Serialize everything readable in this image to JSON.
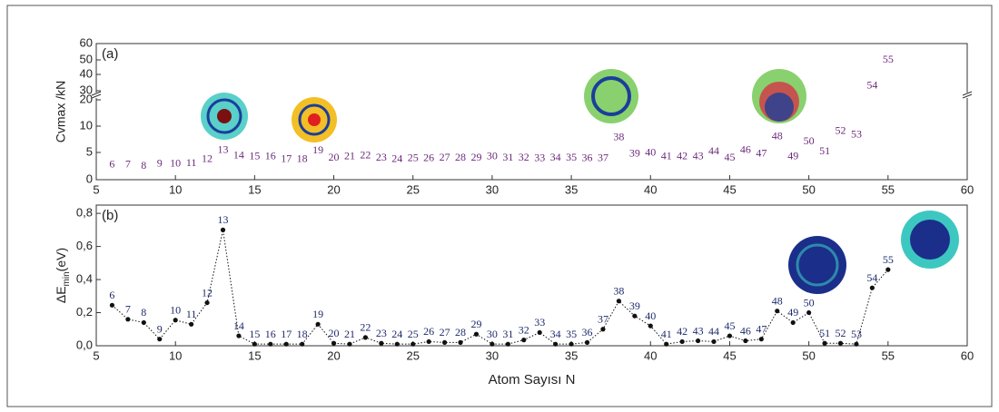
{
  "chart_data": [
    {
      "type": "scatter",
      "panel": "(a)",
      "y_label": "Cvmax /kN",
      "color": "#6b2a7a",
      "x": [
        6,
        7,
        8,
        9,
        10,
        11,
        12,
        13,
        14,
        15,
        16,
        17,
        18,
        19,
        20,
        21,
        22,
        23,
        24,
        25,
        26,
        27,
        28,
        29,
        30,
        31,
        32,
        33,
        34,
        35,
        36,
        37,
        38,
        39,
        40,
        41,
        42,
        43,
        44,
        45,
        46,
        47,
        48,
        49,
        50,
        51,
        52,
        53,
        54,
        55
      ],
      "values": [
        2.7,
        2.7,
        2.5,
        2.9,
        2.9,
        3,
        3.7,
        5.4,
        4.4,
        4.2,
        4.2,
        3.7,
        3.7,
        5.3,
        4,
        4.2,
        4.4,
        4,
        3.7,
        3.9,
        3.9,
        4,
        4,
        4,
        4.2,
        4,
        4,
        3.9,
        4,
        4,
        3.9,
        3.9,
        7.8,
        4.7,
        4.9,
        4.2,
        4.2,
        4.2,
        5.1,
        4,
        5.4,
        4.7,
        8,
        4.2,
        7,
        5.1,
        9,
        8.3,
        33,
        50
      ],
      "xlim": [
        5,
        60
      ],
      "xticks": [
        5,
        10,
        15,
        20,
        25,
        30,
        35,
        40,
        45,
        50,
        55,
        60
      ],
      "ylim": [
        0,
        60
      ],
      "yticks": [
        0,
        5,
        10,
        20,
        30,
        40,
        50,
        60
      ],
      "ybreak": [
        20,
        30
      ]
    },
    {
      "type": "line",
      "panel": "(b)",
      "y_label": [
        "ΔE",
        "min",
        "(eV)"
      ],
      "x_label": "Atom Sayısı N",
      "color": "#111",
      "label_color": "#1c2a6b",
      "x": [
        6,
        7,
        8,
        9,
        10,
        11,
        12,
        13,
        14,
        15,
        16,
        17,
        18,
        19,
        20,
        21,
        22,
        23,
        24,
        25,
        26,
        27,
        28,
        29,
        30,
        31,
        32,
        33,
        34,
        35,
        36,
        37,
        38,
        39,
        40,
        41,
        42,
        43,
        44,
        45,
        46,
        47,
        48,
        49,
        50,
        51,
        52,
        53,
        54,
        55
      ],
      "values": [
        0.245,
        0.16,
        0.14,
        0.04,
        0.155,
        0.13,
        0.26,
        0.7,
        0.06,
        0.01,
        0.01,
        0.01,
        0.01,
        0.13,
        0.015,
        0.01,
        0.05,
        0.015,
        0.01,
        0.01,
        0.025,
        0.02,
        0.02,
        0.07,
        0.01,
        0.01,
        0.035,
        0.08,
        0.01,
        0.01,
        0.02,
        0.1,
        0.27,
        0.18,
        0.12,
        0.01,
        0.025,
        0.03,
        0.025,
        0.06,
        0.03,
        0.04,
        0.21,
        0.14,
        0.2,
        0.015,
        0.015,
        0.01,
        0.35,
        0.46
      ],
      "xlim": [
        5,
        60
      ],
      "xticks": [
        5,
        10,
        15,
        20,
        25,
        30,
        35,
        40,
        45,
        50,
        55,
        60
      ],
      "ylim": [
        0,
        0.85
      ],
      "yticks": [
        {
          "value": 0,
          "label": "0,0"
        },
        {
          "value": 0.2,
          "label": "0,2"
        },
        {
          "value": 0.4,
          "label": "0,4"
        },
        {
          "value": 0.6,
          "label": "0,6"
        },
        {
          "value": 0.8,
          "label": "0,8"
        }
      ]
    }
  ]
}
